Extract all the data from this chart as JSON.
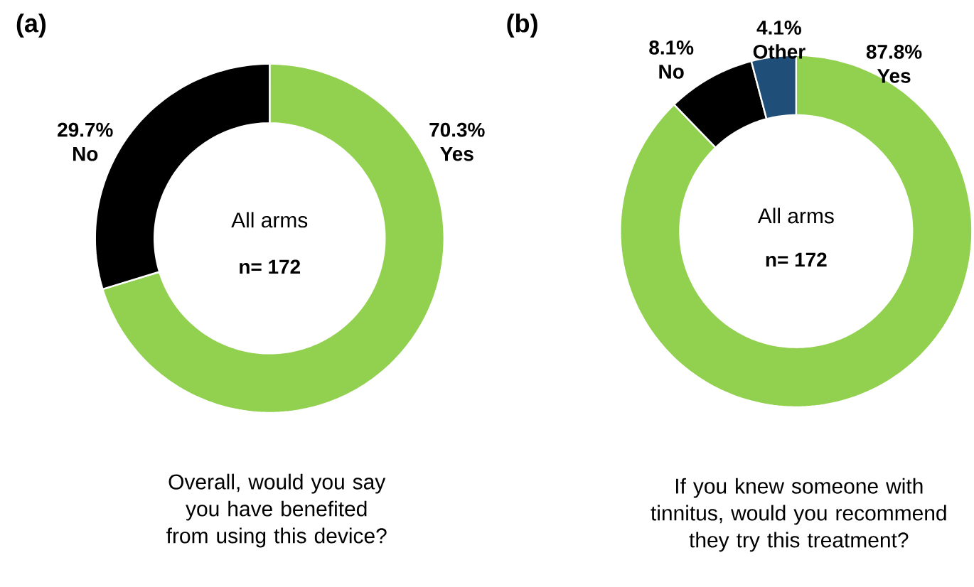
{
  "chart_data": [
    {
      "type": "donut",
      "title": "(a)",
      "categories": [
        "Yes",
        "No"
      ],
      "values": [
        70.3,
        29.7
      ],
      "colors": [
        "#92d050",
        "#000000"
      ],
      "value_labels": [
        "70.3%",
        "29.7%"
      ],
      "annotations": [
        "All arms",
        "n= 172",
        "Overall, would you say you have benefited from using this device?"
      ]
    },
    {
      "type": "donut",
      "title": "(b)",
      "categories": [
        "Yes",
        "No",
        "Other"
      ],
      "values": [
        87.8,
        8.1,
        4.1
      ],
      "colors": [
        "#92d050",
        "#000000",
        "#1f4e79"
      ],
      "value_labels": [
        "87.8%",
        "8.1%",
        "4.1%"
      ],
      "annotations": [
        "All arms",
        "n= 172",
        "If you knew someone with tinnitus, would you recommend they try this treatment?"
      ]
    }
  ]
}
